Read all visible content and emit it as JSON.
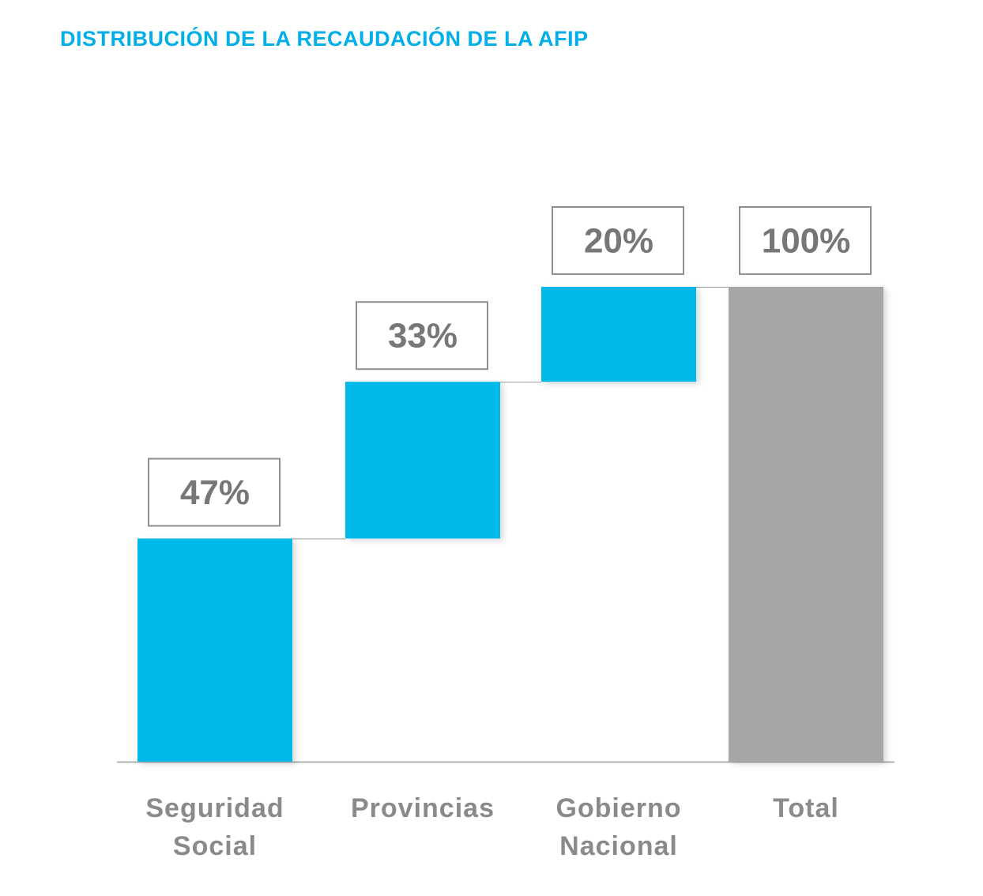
{
  "chart_data": {
    "type": "waterfall",
    "title": "DISTRIBUCIÓN DE LA RECAUDACIÓN DE LA AFIP",
    "categories": [
      "Seguridad Social",
      "Provincias",
      "Gobierno Nacional",
      "Total"
    ],
    "values": [
      47,
      33,
      20,
      100
    ],
    "value_labels": [
      "47%",
      "33%",
      "20%",
      "100%"
    ],
    "colors": [
      "#00b9e8",
      "#00b9e8",
      "#00b9e8",
      "#a6a6a6"
    ]
  }
}
